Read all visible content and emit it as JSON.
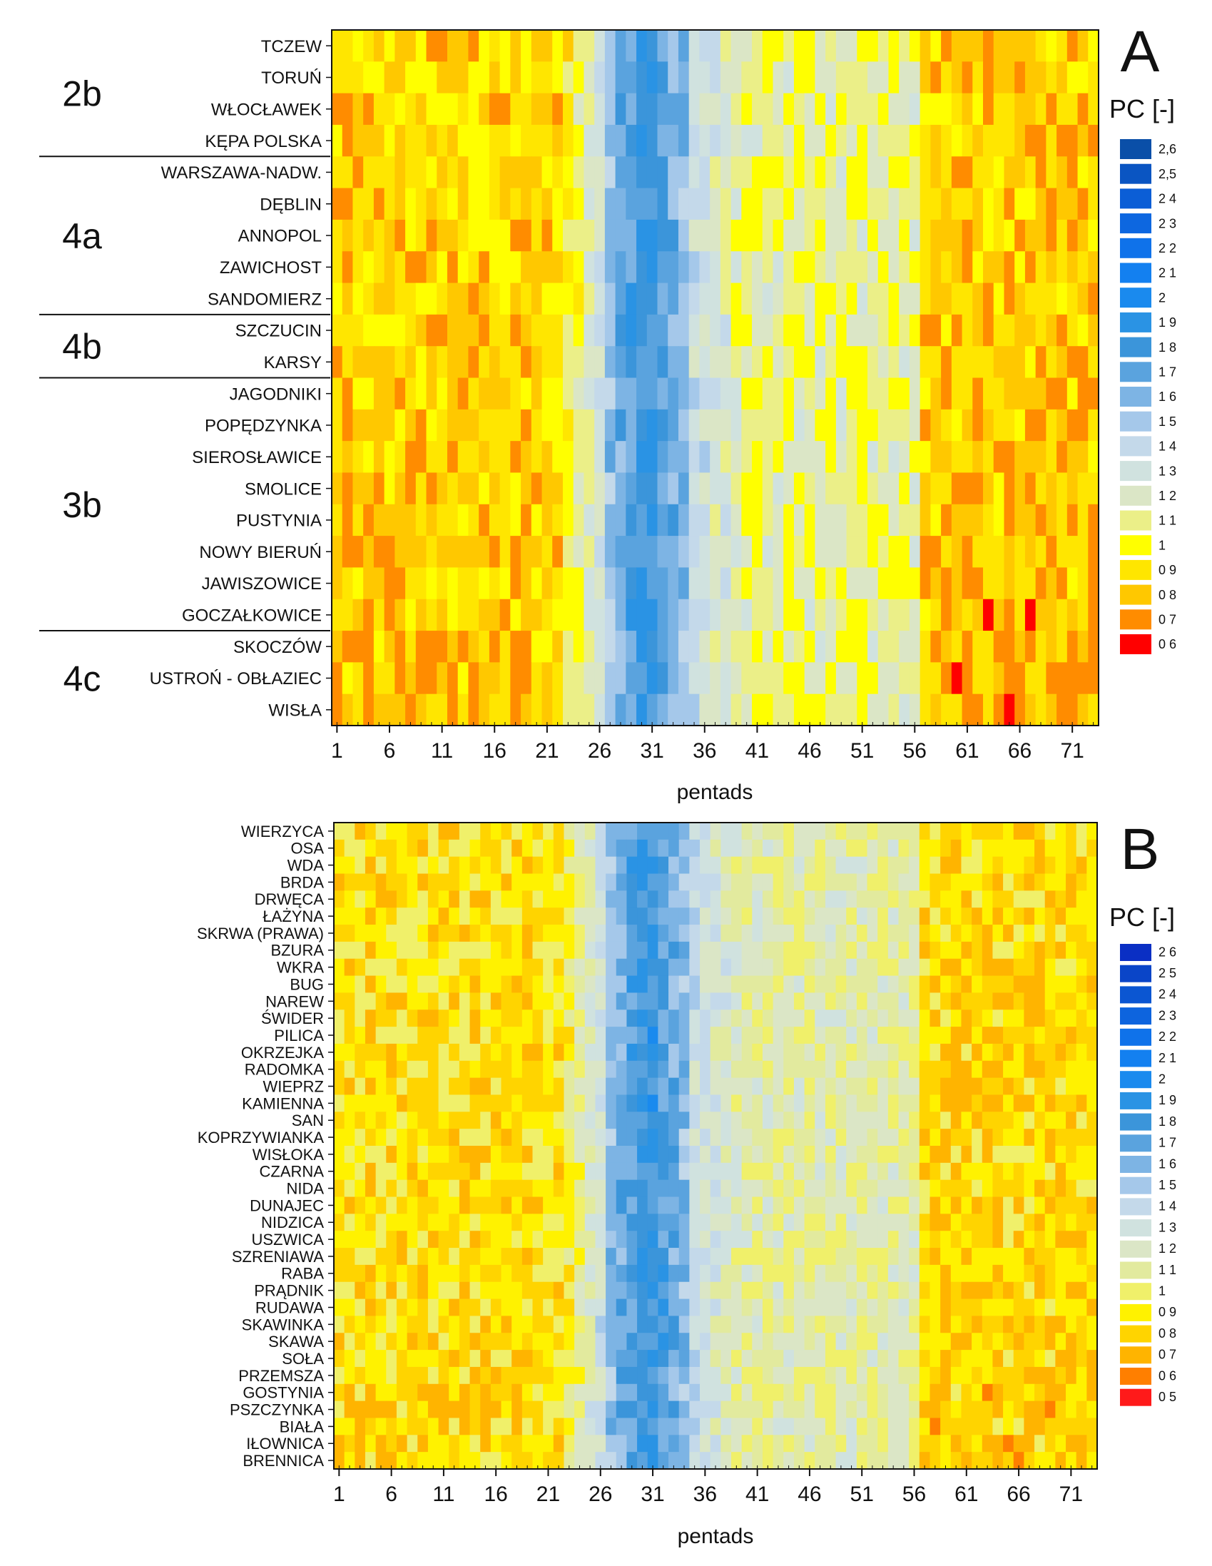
{
  "chart_data": [
    {
      "type": "heatmap",
      "panel_label": "A",
      "title": "",
      "xlabel": "pentads",
      "ylabel": "",
      "legend_title": "PC [-]",
      "x_ticks": [
        "1",
        "6",
        "11",
        "16",
        "21",
        "26",
        "31",
        "36",
        "41",
        "46",
        "51",
        "56",
        "61",
        "66",
        "71"
      ],
      "x_range": [
        1,
        73
      ],
      "rows": [
        "TCZEW",
        "TORUŃ",
        "WŁOCŁAWEK",
        "KĘPA POLSKA",
        "WARSZAWA-NADW.",
        "DĘBLIN",
        "ANNOPOL",
        "ZAWICHOST",
        "SANDOMIERZ",
        "SZCZUCIN",
        "KARSY",
        "JAGODNIKI",
        "POPĘDZYNKA",
        "SIEROSŁAWICE",
        "SMOLICE",
        "PUSTYNIA",
        "NOWY BIERUŃ",
        "JAWISZOWICE",
        "GOCZAŁKOWICE",
        "SKOCZÓW",
        "USTROŃ - OBŁAZIEC",
        "WISŁA"
      ],
      "groups": [
        {
          "label": "2b",
          "first_row": 0,
          "last_row": 3
        },
        {
          "label": "4a",
          "first_row": 4,
          "last_row": 8
        },
        {
          "label": "4b",
          "first_row": 9,
          "last_row": 10
        },
        {
          "label": "3b",
          "first_row": 11,
          "last_row": 18
        },
        {
          "label": "4c",
          "first_row": 19,
          "last_row": 21
        }
      ],
      "colorbar_labels": [
        "2,6",
        "2,5",
        "2 4",
        "2 3",
        "2 2",
        "2 1",
        "2",
        "1 9",
        "1 8",
        "1 7",
        "1 6",
        "1 5",
        "1 4",
        "1 3",
        "1 2",
        "1 1",
        "1",
        "0 9",
        "0 8",
        "0 7",
        "0 6"
      ],
      "colorbar_values": [
        2.6,
        2.5,
        2.4,
        2.3,
        2.2,
        2.1,
        2.0,
        1.9,
        1.8,
        1.7,
        1.6,
        1.5,
        1.4,
        1.3,
        1.2,
        1.1,
        1.0,
        0.9,
        0.8,
        0.7,
        0.6
      ],
      "colorbar_colors": [
        "#0a4fa8",
        "#0a55c2",
        "#0b5ed6",
        "#0d67e0",
        "#0f72ea",
        "#1380f0",
        "#1a8aee",
        "#2a93e4",
        "#3b95da",
        "#5aa3de",
        "#7db4e4",
        "#a5c8ea",
        "#c4d9ea",
        "#d0e2df",
        "#dbe6c6",
        "#ebef88",
        "#ffff00",
        "#ffe600",
        "#ffc800",
        "#ff8c00",
        "#ff0000"
      ]
    },
    {
      "type": "heatmap",
      "panel_label": "B",
      "title": "",
      "xlabel": "pentads",
      "ylabel": "",
      "legend_title": "PC [-]",
      "x_ticks": [
        "1",
        "6",
        "11",
        "16",
        "21",
        "26",
        "31",
        "36",
        "41",
        "46",
        "51",
        "56",
        "61",
        "66",
        "71"
      ],
      "x_range": [
        1,
        73
      ],
      "rows": [
        "WIERZYCA",
        "OSA",
        "WDA",
        "BRDA",
        "DRWĘCA",
        "ŁAŻYNA",
        "SKRWA (PRAWA)",
        "BZURA",
        "WKRA",
        "BUG",
        "NAREW",
        "ŚWIDER",
        "PILICA",
        "OKRZEJKA",
        "RADOMKA",
        "WIEPRZ",
        "KAMIENNA",
        "SAN",
        "KOPRZYWIANKA",
        "WISŁOKA",
        "CZARNA",
        "NIDA",
        "DUNAJEC",
        "NIDZICA",
        "USZWICA",
        "SZRENIAWA",
        "RABA",
        "PRĄDNIK",
        "RUDAWA",
        "SKAWINKA",
        "SKAWA",
        "SOŁA",
        "PRZEMSZA",
        "GOSTYNIA",
        "PSZCZYNKA",
        "BIAŁA",
        "IŁOWNICA",
        "BRENNICA"
      ],
      "colorbar_labels": [
        "2 6",
        "2 5",
        "2 4",
        "2 3",
        "2 2",
        "2 1",
        "2",
        "1 9",
        "1 8",
        "1 7",
        "1 6",
        "1 5",
        "1 4",
        "1 3",
        "1 2",
        "1 1",
        "1",
        "0 9",
        "0 8",
        "0 7",
        "0 6",
        "0 5"
      ],
      "colorbar_values": [
        2.6,
        2.5,
        2.4,
        2.3,
        2.2,
        2.1,
        2.0,
        1.9,
        1.8,
        1.7,
        1.6,
        1.5,
        1.4,
        1.3,
        1.2,
        1.1,
        1.0,
        0.9,
        0.8,
        0.7,
        0.6,
        0.5
      ],
      "colorbar_colors": [
        "#0a2fc4",
        "#0a45c8",
        "#0b56d2",
        "#0d64de",
        "#0f72ea",
        "#1380f0",
        "#1a8aee",
        "#2a93e4",
        "#3b95da",
        "#5aa3de",
        "#7db4e4",
        "#a5c8ea",
        "#c4d9ea",
        "#d0e2df",
        "#dbe6c6",
        "#e2ea9e",
        "#f0f06a",
        "#fff200",
        "#ffd400",
        "#ffb400",
        "#ff7f00",
        "#ff1a1a"
      ]
    }
  ]
}
